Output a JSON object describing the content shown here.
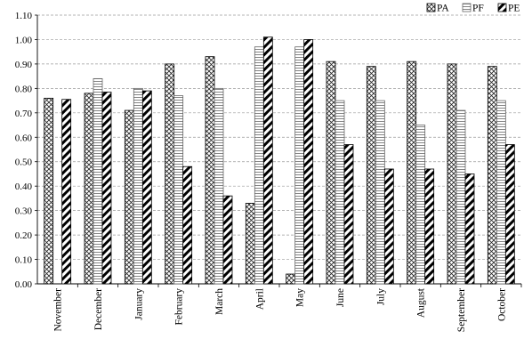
{
  "chart_data": {
    "type": "bar",
    "categories": [
      "November",
      "December",
      "January",
      "February",
      "March",
      "April",
      "May",
      "June",
      "July",
      "August",
      "September",
      "October"
    ],
    "series": [
      {
        "name": "PA",
        "pattern": "crosshatch",
        "values": [
          0.76,
          0.78,
          0.71,
          0.9,
          0.93,
          0.33,
          0.04,
          0.91,
          0.89,
          0.91,
          0.9,
          0.89
        ]
      },
      {
        "name": "PF",
        "pattern": "horizontal",
        "values": [
          0.0,
          0.84,
          0.8,
          0.77,
          0.8,
          0.97,
          0.97,
          0.75,
          0.75,
          0.65,
          0.71,
          0.75
        ]
      },
      {
        "name": "PE",
        "pattern": "diagonal",
        "values": [
          0.755,
          0.785,
          0.79,
          0.48,
          0.36,
          1.01,
          1.0,
          0.57,
          0.47,
          0.47,
          0.45,
          0.57
        ]
      }
    ],
    "ylim": [
      0,
      1.1
    ],
    "yticks": [
      "0.00",
      "0.10",
      "0.20",
      "0.30",
      "0.40",
      "0.50",
      "0.60",
      "0.70",
      "0.80",
      "0.90",
      "1.00",
      "1.10"
    ],
    "grid": "horizontal dashed",
    "legend_position": "top-right",
    "title": "",
    "xlabel": "",
    "ylabel": ""
  }
}
